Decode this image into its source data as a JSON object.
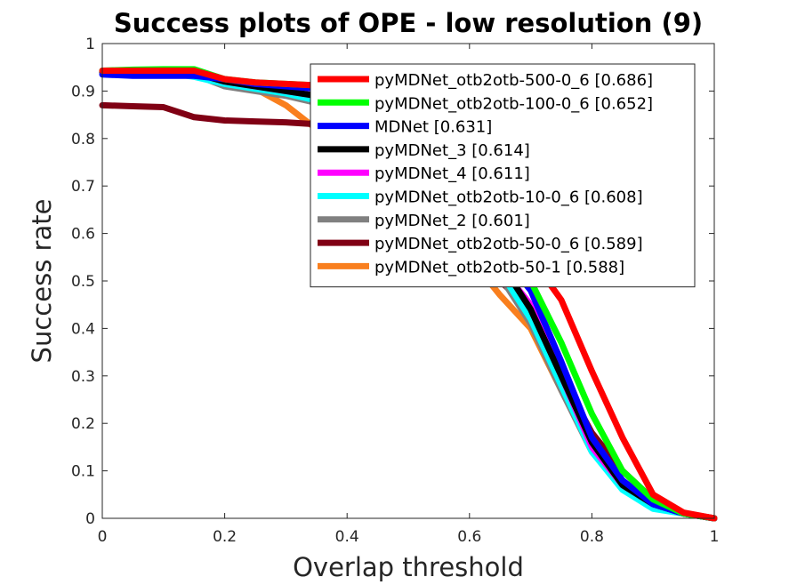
{
  "chart_data": {
    "type": "line",
    "title": "Success plots of OPE - low resolution (9)",
    "xlabel": "Overlap threshold",
    "ylabel": "Success rate",
    "xlim": [
      0,
      1
    ],
    "ylim": [
      0,
      1
    ],
    "xticks": [
      "0",
      "0.2",
      "0.4",
      "0.6",
      "0.8",
      "1"
    ],
    "yticks": [
      "0",
      "0.1",
      "0.2",
      "0.3",
      "0.4",
      "0.5",
      "0.6",
      "0.7",
      "0.8",
      "0.9",
      "1"
    ],
    "legend_position": "top-right",
    "x": [
      0,
      0.05,
      0.1,
      0.15,
      0.2,
      0.25,
      0.3,
      0.35,
      0.4,
      0.45,
      0.5,
      0.55,
      0.6,
      0.65,
      0.7,
      0.75,
      0.8,
      0.85,
      0.9,
      0.95,
      1
    ],
    "series": [
      {
        "name": "pyMDNet_otb2otb-500-0_6 [0.686]",
        "color": "#ff0000",
        "values": [
          0.943,
          0.943,
          0.943,
          0.943,
          0.925,
          0.918,
          0.915,
          0.912,
          0.908,
          0.9,
          0.88,
          0.82,
          0.73,
          0.64,
          0.55,
          0.46,
          0.31,
          0.17,
          0.05,
          0.012,
          0.0
        ]
      },
      {
        "name": "pyMDNet_otb2otb-100-0_6 [0.652]",
        "color": "#00ff00",
        "values": [
          0.943,
          0.945,
          0.946,
          0.946,
          0.925,
          0.918,
          0.915,
          0.912,
          0.905,
          0.89,
          0.86,
          0.8,
          0.7,
          0.6,
          0.5,
          0.37,
          0.22,
          0.1,
          0.04,
          0.01,
          0.0
        ]
      },
      {
        "name": "MDNet [0.631]",
        "color": "#0000ff",
        "values": [
          0.935,
          0.932,
          0.932,
          0.932,
          0.925,
          0.915,
          0.91,
          0.905,
          0.898,
          0.88,
          0.85,
          0.78,
          0.67,
          0.56,
          0.48,
          0.33,
          0.17,
          0.08,
          0.03,
          0.01,
          0.0
        ]
      },
      {
        "name": "pyMDNet_3 [0.614]",
        "color": "#000000",
        "values": [
          0.94,
          0.94,
          0.94,
          0.938,
          0.92,
          0.91,
          0.9,
          0.89,
          0.88,
          0.86,
          0.83,
          0.76,
          0.65,
          0.54,
          0.44,
          0.3,
          0.16,
          0.07,
          0.03,
          0.01,
          0.0
        ]
      },
      {
        "name": "pyMDNet_4 [0.611]",
        "color": "#ff00ff",
        "values": [
          0.94,
          0.94,
          0.94,
          0.938,
          0.92,
          0.91,
          0.9,
          0.89,
          0.875,
          0.855,
          0.82,
          0.75,
          0.64,
          0.53,
          0.45,
          0.3,
          0.15,
          0.07,
          0.03,
          0.01,
          0.0
        ]
      },
      {
        "name": "pyMDNet_otb2otb-10-0_6 [0.608]",
        "color": "#00ffff",
        "values": [
          0.94,
          0.94,
          0.94,
          0.93,
          0.915,
          0.905,
          0.895,
          0.88,
          0.87,
          0.85,
          0.81,
          0.74,
          0.63,
          0.52,
          0.42,
          0.28,
          0.14,
          0.06,
          0.02,
          0.01,
          0.0
        ]
      },
      {
        "name": "pyMDNet_2 [0.601]",
        "color": "#808080",
        "values": [
          0.94,
          0.94,
          0.94,
          0.935,
          0.91,
          0.9,
          0.89,
          0.875,
          0.86,
          0.84,
          0.8,
          0.73,
          0.62,
          0.51,
          0.41,
          0.27,
          0.14,
          0.07,
          0.03,
          0.01,
          0.0
        ]
      },
      {
        "name": "pyMDNet_otb2otb-50-0_6 [0.589]",
        "color": "#800014",
        "values": [
          0.87,
          0.868,
          0.866,
          0.845,
          0.838,
          0.836,
          0.834,
          0.83,
          0.82,
          0.8,
          0.77,
          0.7,
          0.6,
          0.5,
          0.44,
          0.3,
          0.18,
          0.1,
          0.04,
          0.01,
          0.0
        ]
      },
      {
        "name": "pyMDNet_otb2otb-50-1 [0.588]",
        "color": "#f97f1e",
        "values": [
          0.94,
          0.94,
          0.94,
          0.935,
          0.912,
          0.905,
          0.87,
          0.82,
          0.78,
          0.74,
          0.7,
          0.64,
          0.55,
          0.47,
          0.4,
          0.27,
          0.15,
          0.07,
          0.03,
          0.01,
          0.0
        ]
      }
    ]
  }
}
